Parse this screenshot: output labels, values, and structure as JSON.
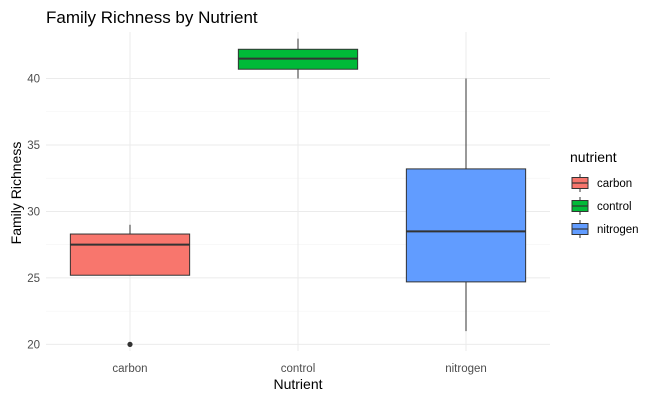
{
  "chart_data": {
    "type": "box",
    "title": "Family Richness by Nutrient",
    "xlabel": "Nutrient",
    "ylabel": "Family Richness",
    "ylim": [
      19.5,
      43.5
    ],
    "y_ticks": [
      20,
      25,
      30,
      35,
      40
    ],
    "categories": [
      "carbon",
      "control",
      "nitrogen"
    ],
    "boxes": [
      {
        "category": "carbon",
        "whisker_low": 25.2,
        "q1": 25.2,
        "median": 27.5,
        "q3": 28.3,
        "whisker_high": 29.0,
        "outliers": [
          20
        ]
      },
      {
        "category": "control",
        "whisker_low": 40.0,
        "q1": 40.7,
        "median": 41.5,
        "q3": 42.2,
        "whisker_high": 43.0,
        "outliers": []
      },
      {
        "category": "nitrogen",
        "whisker_low": 21.0,
        "q1": 24.7,
        "median": 28.5,
        "q3": 33.2,
        "whisker_high": 40.0,
        "outliers": []
      }
    ],
    "legend": {
      "title": "nutrient",
      "position": "right",
      "entries": [
        {
          "label": "carbon",
          "color": "#F8766D"
        },
        {
          "label": "control",
          "color": "#00BA38"
        },
        {
          "label": "nitrogen",
          "color": "#619CFF"
        }
      ]
    },
    "grid": true
  }
}
